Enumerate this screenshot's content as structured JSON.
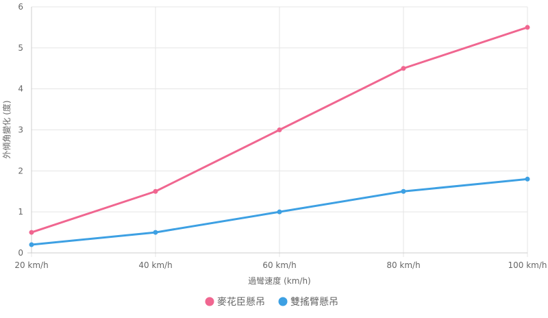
{
  "chart_data": {
    "type": "line",
    "categories": [
      "20 km/h",
      "40 km/h",
      "60 km/h",
      "80 km/h",
      "100 km/h"
    ],
    "series": [
      {
        "name": "麥花臣懸吊",
        "values": [
          0.5,
          1.5,
          3.0,
          4.5,
          5.5
        ],
        "color": "#f06690"
      },
      {
        "name": "雙搖臂懸吊",
        "values": [
          0.2,
          0.5,
          1.0,
          1.5,
          1.8
        ],
        "color": "#3da0e3"
      }
    ],
    "title": "",
    "xlabel": "過彎速度 (km/h)",
    "ylabel": "外傾角變化 (度)",
    "ylim": [
      0,
      6
    ],
    "yticks": [
      0,
      1,
      2,
      3,
      4,
      5,
      6
    ],
    "grid": true,
    "legend_position": "bottom"
  }
}
